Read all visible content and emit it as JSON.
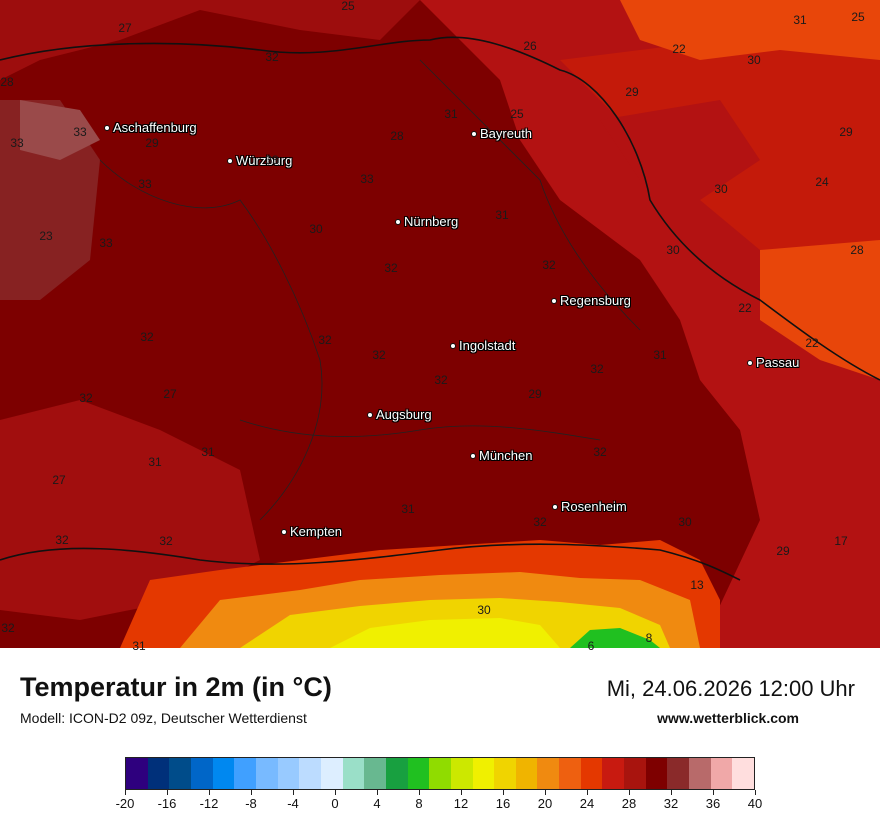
{
  "map": {
    "title": "Temperatur in 2m (in °C)",
    "model": "Modell: ICON-D2 09z, Deutscher Wetterdienst",
    "datetime": "Mi, 24.06.2026 12:00 Uhr",
    "website": "www.wetterblick.com",
    "cities": [
      "Aschaffenburg",
      "Würzburg",
      "Bayreuth",
      "Nürnberg",
      "Regensburg",
      "Ingolstadt",
      "Passau",
      "Augsburg",
      "München",
      "Rosenheim",
      "Kempten"
    ],
    "values": [
      "27",
      "25",
      "31",
      "25",
      "32",
      "26",
      "22",
      "30",
      "28",
      "33",
      "31",
      "29",
      "29",
      "29",
      "33",
      "28",
      "33",
      "25",
      "33",
      "30",
      "24",
      "33",
      "31",
      "23",
      "33",
      "30",
      "30",
      "28",
      "32",
      "32",
      "22",
      "32",
      "32",
      "32",
      "32",
      "31",
      "22",
      "32",
      "32",
      "27",
      "32",
      "29",
      "32",
      "31",
      "31",
      "32",
      "27",
      "31",
      "30",
      "32",
      "32",
      "29",
      "17",
      "13",
      "30",
      "32",
      "31",
      "8",
      "6"
    ],
    "colors": {
      "base": "#7d0000",
      "hot": "#a10e0e",
      "warm": "#c41a0a",
      "orange": "#e8460a"
    }
  },
  "legend": {
    "ticks": [
      "-20",
      "-16",
      "-12",
      "-8",
      "-4",
      "0",
      "4",
      "8",
      "12",
      "16",
      "20",
      "24",
      "28",
      "32",
      "36",
      "40"
    ],
    "colors": [
      "#2e007e",
      "#00307a",
      "#004c8a",
      "#0066c8",
      "#0088f0",
      "#40a0ff",
      "#78baff",
      "#98caff",
      "#bcdcff",
      "#ddeeff",
      "#9adfc8",
      "#68b890",
      "#18a040",
      "#20c020",
      "#90dc00",
      "#cce800",
      "#f0f000",
      "#f0d400",
      "#f0b400",
      "#f08a10",
      "#ee6010",
      "#e43800",
      "#c81a10",
      "#a8140e",
      "#7e0000",
      "#8a2a2a",
      "#b86a6a",
      "#f0a8a8",
      "#ffdede"
    ]
  }
}
